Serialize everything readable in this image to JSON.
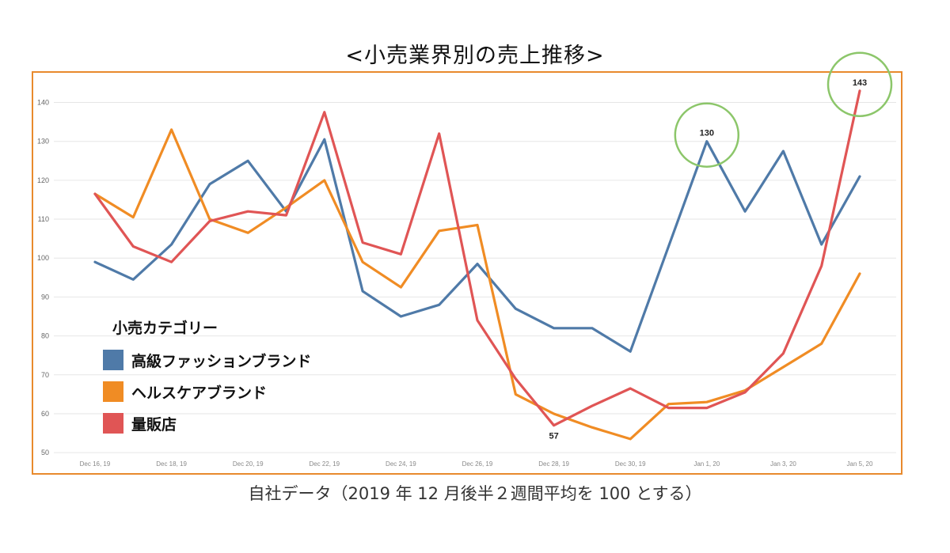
{
  "title": "<小売業界別の売上推移>",
  "caption": "自社データ（2019 年 12 月後半２週間平均を 100 とする）",
  "chart_data": {
    "type": "line",
    "x": [
      "Dec 16, 19",
      "Dec 17, 19",
      "Dec 18, 19",
      "Dec 19, 19",
      "Dec 20, 19",
      "Dec 21, 19",
      "Dec 22, 19",
      "Dec 23, 19",
      "Dec 24, 19",
      "Dec 25, 19",
      "Dec 26, 19",
      "Dec 27, 19",
      "Dec 28, 19",
      "Dec 29, 19",
      "Dec 30, 19",
      "Dec 31, 19",
      "Jan 1, 20",
      "Jan 2, 20",
      "Jan 3, 20",
      "Jan 4, 20",
      "Jan 5, 20"
    ],
    "x_tick_labels": [
      "Dec 16, 19",
      "Dec 18, 19",
      "Dec 20, 19",
      "Dec 22, 19",
      "Dec 24, 19",
      "Dec 26, 19",
      "Dec 28, 19",
      "Dec 30, 19",
      "Jan 1, 20",
      "Jan 3, 20",
      "Jan 5, 20"
    ],
    "y_ticks": [
      50,
      60,
      70,
      80,
      90,
      100,
      110,
      120,
      130,
      140
    ],
    "ylim": [
      48,
      146
    ],
    "grid": true,
    "legend_title": "小売カテゴリー",
    "legend_position": "bottom-left",
    "series": [
      {
        "name": "高級ファッションブランド",
        "color": "#4f7aa8",
        "values": [
          99,
          94.5,
          103.5,
          119,
          125,
          112,
          130.5,
          91.5,
          85,
          88,
          98.5,
          87,
          82,
          82,
          76,
          103,
          130,
          112,
          127.5,
          103.5,
          121
        ]
      },
      {
        "name": "ヘルスケアブランド",
        "color": "#f08c24",
        "values": [
          116.5,
          110.5,
          133,
          110,
          106.5,
          113,
          120,
          99,
          92.5,
          107,
          108.5,
          65,
          60,
          56.5,
          53.5,
          62.5,
          63,
          66,
          72,
          78,
          96
        ]
      },
      {
        "name": "量販店",
        "color": "#e05555",
        "values": [
          116.5,
          103,
          99,
          109.5,
          112,
          111,
          137.5,
          104,
          101,
          132,
          84,
          69,
          57,
          62,
          66.5,
          61.5,
          61.5,
          65.5,
          75.5,
          98,
          143
        ]
      }
    ],
    "annotations": [
      {
        "text": "130",
        "series": 0,
        "index": 16,
        "circle": true
      },
      {
        "text": "143",
        "series": 2,
        "index": 20,
        "circle": true
      },
      {
        "text": "57",
        "series": 2,
        "index": 12,
        "circle": false
      }
    ],
    "annotation_circle_color": "#8cc66a"
  }
}
